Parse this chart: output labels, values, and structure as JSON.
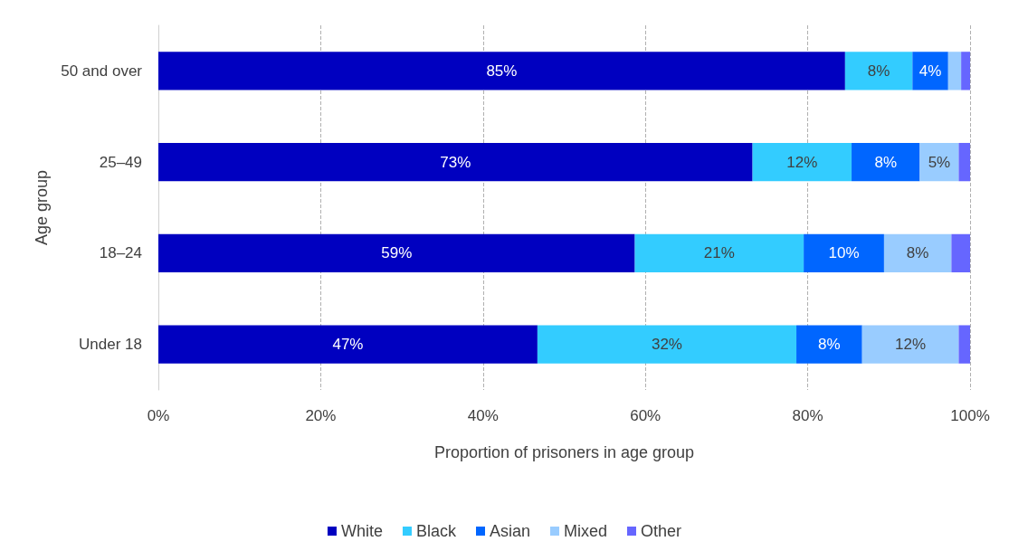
{
  "chart_data": {
    "type": "bar",
    "orientation": "horizontal",
    "stacked": true,
    "xlabel": "Proportion of prisoners in age group",
    "ylabel": "Age group",
    "categories": [
      "50 and over",
      "25–49",
      "18–24",
      "Under 18"
    ],
    "series": [
      {
        "name": "White",
        "color": "#0000c0",
        "values": [
          84.6,
          73.2,
          58.7,
          46.7
        ],
        "value_labels": [
          "85%",
          "73%",
          "59%",
          "47%"
        ]
      },
      {
        "name": "Black",
        "color": "#33ccff",
        "values": [
          8.3,
          12.2,
          20.8,
          31.9
        ],
        "value_labels": [
          "8%",
          "12%",
          "21%",
          "32%"
        ]
      },
      {
        "name": "Asian",
        "color": "#0066ff",
        "values": [
          4.4,
          8.4,
          9.9,
          8.1
        ],
        "value_labels": [
          "4%",
          "8%",
          "10%",
          "8%"
        ]
      },
      {
        "name": "Mixed",
        "color": "#99ccff",
        "values": [
          1.6,
          4.8,
          8.3,
          11.9
        ],
        "value_labels": [
          null,
          "5%",
          "8%",
          "12%"
        ]
      },
      {
        "name": "Other",
        "color": "#6666ff",
        "values": [
          1.1,
          1.4,
          2.3,
          1.4
        ],
        "value_labels": [
          null,
          null,
          null,
          null
        ]
      }
    ],
    "xlim": [
      0,
      100
    ],
    "xticks": [
      {
        "value": 0,
        "label": "0%"
      },
      {
        "value": 20,
        "label": "20%"
      },
      {
        "value": 40,
        "label": "40%"
      },
      {
        "value": 60,
        "label": "60%"
      },
      {
        "value": 80,
        "label": "80%"
      },
      {
        "value": 100,
        "label": "100%"
      }
    ],
    "grid": "x",
    "legend": "bottom"
  }
}
